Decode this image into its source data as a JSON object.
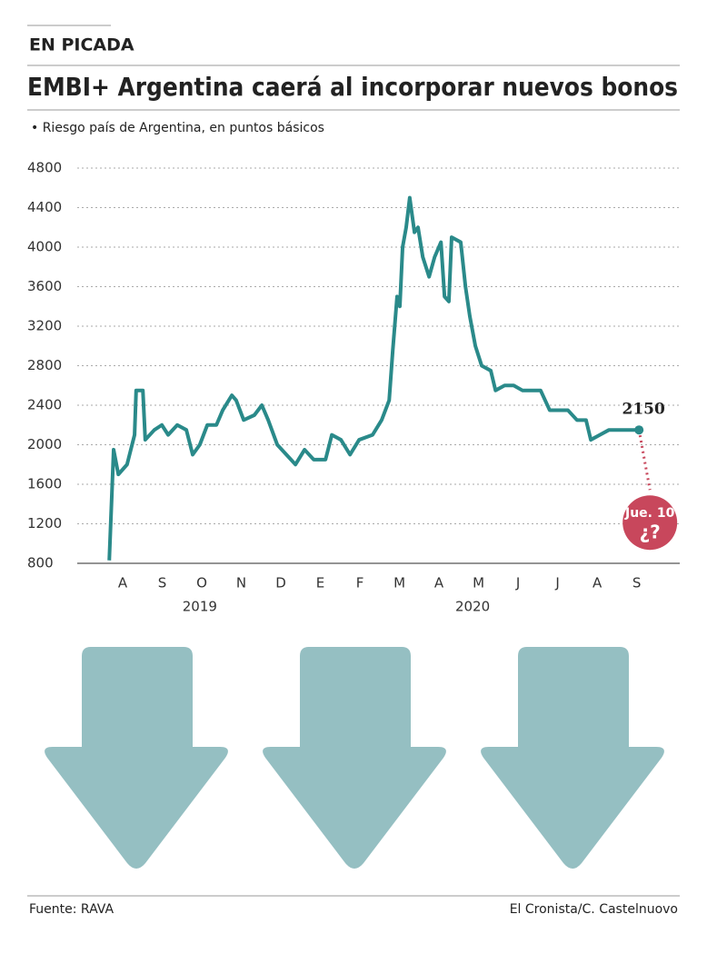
{
  "chart_data": {
    "type": "line",
    "kicker": "EN PICADA",
    "title": "EMBI+ Argentina caerá al incorporar nuevos bonos",
    "subtitle": "• Riesgo país de Argentina, en puntos básicos",
    "source": "Fuente:  RAVA",
    "credit": "El Cronista/C. Castelnuovo",
    "ylim": [
      800,
      4800
    ],
    "yticks": [
      800,
      1200,
      1600,
      2000,
      2400,
      2800,
      3200,
      3600,
      4000,
      4400,
      4800
    ],
    "xlim": [
      -1.15,
      14.09
    ],
    "xticks": [
      {
        "value": 0,
        "label": "A"
      },
      {
        "value": 1,
        "label": "S"
      },
      {
        "value": 2,
        "label": "O"
      },
      {
        "value": 3,
        "label": "N"
      },
      {
        "value": 4,
        "label": "D"
      },
      {
        "value": 5,
        "label": "E"
      },
      {
        "value": 6,
        "label": "F"
      },
      {
        "value": 7,
        "label": "M"
      },
      {
        "value": 8,
        "label": "A"
      },
      {
        "value": 9,
        "label": "M"
      },
      {
        "value": 10,
        "label": "J"
      },
      {
        "value": 11,
        "label": "J"
      },
      {
        "value": 12,
        "label": "A"
      },
      {
        "value": 13,
        "label": "S"
      }
    ],
    "year_labels": [
      {
        "value": 1.95,
        "label": "2019"
      },
      {
        "value": 8.85,
        "label": "2020"
      }
    ],
    "grid": true,
    "x": [
      -0.34,
      -0.23,
      -0.11,
      0.11,
      0.3,
      0.34,
      0.51,
      0.57,
      0.8,
      0.99,
      1.15,
      1.38,
      1.61,
      1.77,
      1.95,
      2.14,
      2.37,
      2.53,
      2.76,
      2.87,
      3.06,
      3.33,
      3.52,
      3.68,
      3.91,
      4.14,
      4.37,
      4.6,
      4.83,
      5.13,
      5.29,
      5.52,
      5.75,
      5.98,
      6.32,
      6.55,
      6.74,
      6.83,
      6.94,
      7.01,
      7.08,
      7.17,
      7.26,
      7.38,
      7.47,
      7.59,
      7.75,
      7.89,
      8.05,
      8.14,
      8.25,
      8.32,
      8.55,
      8.67,
      8.78,
      8.92,
      9.08,
      9.31,
      9.43,
      9.66,
      9.89,
      10.11,
      10.34,
      10.57,
      10.8,
      11.03,
      11.26,
      11.49,
      11.72,
      11.84,
      12.07,
      12.3,
      12.76,
      13.06
    ],
    "series": [
      {
        "color": "#2a8a8a",
        "values": [
          830,
          1950,
          1700,
          1800,
          2100,
          2550,
          2550,
          2050,
          2150,
          2200,
          2100,
          2200,
          2150,
          1900,
          2000,
          2200,
          2200,
          2350,
          2500,
          2450,
          2250,
          2300,
          2400,
          2250,
          2000,
          1900,
          1800,
          1950,
          1850,
          1850,
          2100,
          2050,
          1900,
          2050,
          2100,
          2250,
          2450,
          2950,
          3500,
          3400,
          4000,
          4200,
          4500,
          4150,
          4200,
          3900,
          3700,
          3900,
          4050,
          3500,
          3450,
          4100,
          4050,
          3600,
          3300,
          3000,
          2800,
          2750,
          2550,
          2600,
          2600,
          2550,
          2550,
          2550,
          2350,
          2350,
          2350,
          2250,
          2250,
          2050,
          2100,
          2150,
          2150,
          2150
        ]
      }
    ],
    "projection": {
      "labels": [
        "Jue. 10",
        "¿?"
      ],
      "color": "#c8475c"
    }
  }
}
